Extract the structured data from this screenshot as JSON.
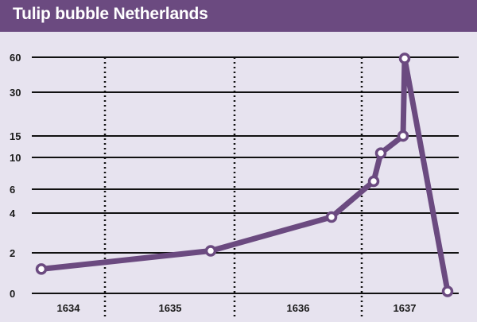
{
  "title": "Tulip bubble Netherlands",
  "colors": {
    "header_bg": "#6b4a80",
    "plot_bg": "#e7e3ef",
    "line": "#6b4a80",
    "grid": "#111111"
  },
  "chart_data": {
    "type": "line",
    "title": "Tulip bubble Netherlands",
    "xlabel": "",
    "ylabel": "",
    "y_ticks": [
      0,
      2,
      4,
      6,
      10,
      15,
      30,
      60
    ],
    "x_categories": [
      "1634",
      "1635",
      "1636",
      "1637"
    ],
    "grid": "horizontal solid gridlines at y ticks, vertical dotted separators between years",
    "series": [
      {
        "points": [
          {
            "x": "1634-01",
            "y": 1.2
          },
          {
            "x": "1635-09",
            "y": 2.1
          },
          {
            "x": "1636-09",
            "y": 3.8
          },
          {
            "x": "1636-12",
            "y": 7.0
          },
          {
            "x": "1637-01",
            "y": 11.0
          },
          {
            "x": "1637-02",
            "y": 15.0
          },
          {
            "x": "1637-02",
            "y": 59.0
          },
          {
            "x": "1637-05",
            "y": 0.1
          }
        ]
      }
    ]
  }
}
